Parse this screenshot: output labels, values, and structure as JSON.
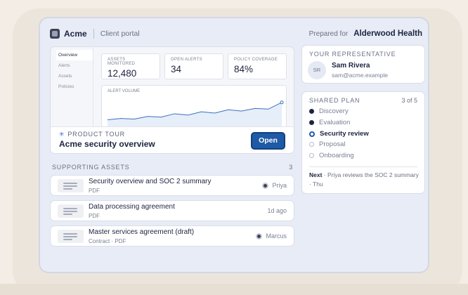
{
  "header": {
    "brand": "Acme",
    "subtitle": "Client portal",
    "prepared_label": "Prepared for",
    "client_name": "Alderwood Health"
  },
  "tour": {
    "nav": [
      "Overview",
      "Alerts",
      "Assets",
      "Policies"
    ],
    "stats": [
      {
        "label": "ASSETS MONITORED",
        "value": "12,480"
      },
      {
        "label": "OPEN ALERTS",
        "value": "34"
      },
      {
        "label": "POLICY COVERAGE",
        "value": "84%"
      }
    ],
    "volume_label": "ALERT VOLUME",
    "volume_series": [
      40,
      42,
      41,
      45,
      44,
      49,
      47,
      52,
      50,
      55,
      53,
      57,
      56,
      66
    ],
    "tag": "PRODUCT TOUR",
    "title": "Acme security overview",
    "open_label": "Open"
  },
  "assets": {
    "heading": "SUPPORTING ASSETS",
    "count": "3",
    "items": [
      {
        "title": "Security overview and SOC 2 summary",
        "sub": "PDF",
        "meta": "Priya"
      },
      {
        "title": "Data processing agreement",
        "sub": "PDF",
        "meta": "1d ago"
      },
      {
        "title": "Master services agreement (draft)",
        "sub": "Contract · PDF",
        "meta": "Marcus"
      }
    ]
  },
  "rep": {
    "heading": "YOUR REPRESENTATIVE",
    "initials": "SR",
    "name": "Sam Rivera",
    "email": "sam@acme.example"
  },
  "plan": {
    "heading": "SHARED PLAN",
    "progress": "3 of 5",
    "stages": [
      "Discovery",
      "Evaluation",
      "Security review",
      "Proposal",
      "Onboarding"
    ],
    "next_label": "Next",
    "next_text": " · Priya reviews the SOC 2 summary · Thu"
  },
  "colors": {
    "accent": "#1e5aa6",
    "ink": "#1d2440",
    "panel": "#e8ecf6"
  }
}
